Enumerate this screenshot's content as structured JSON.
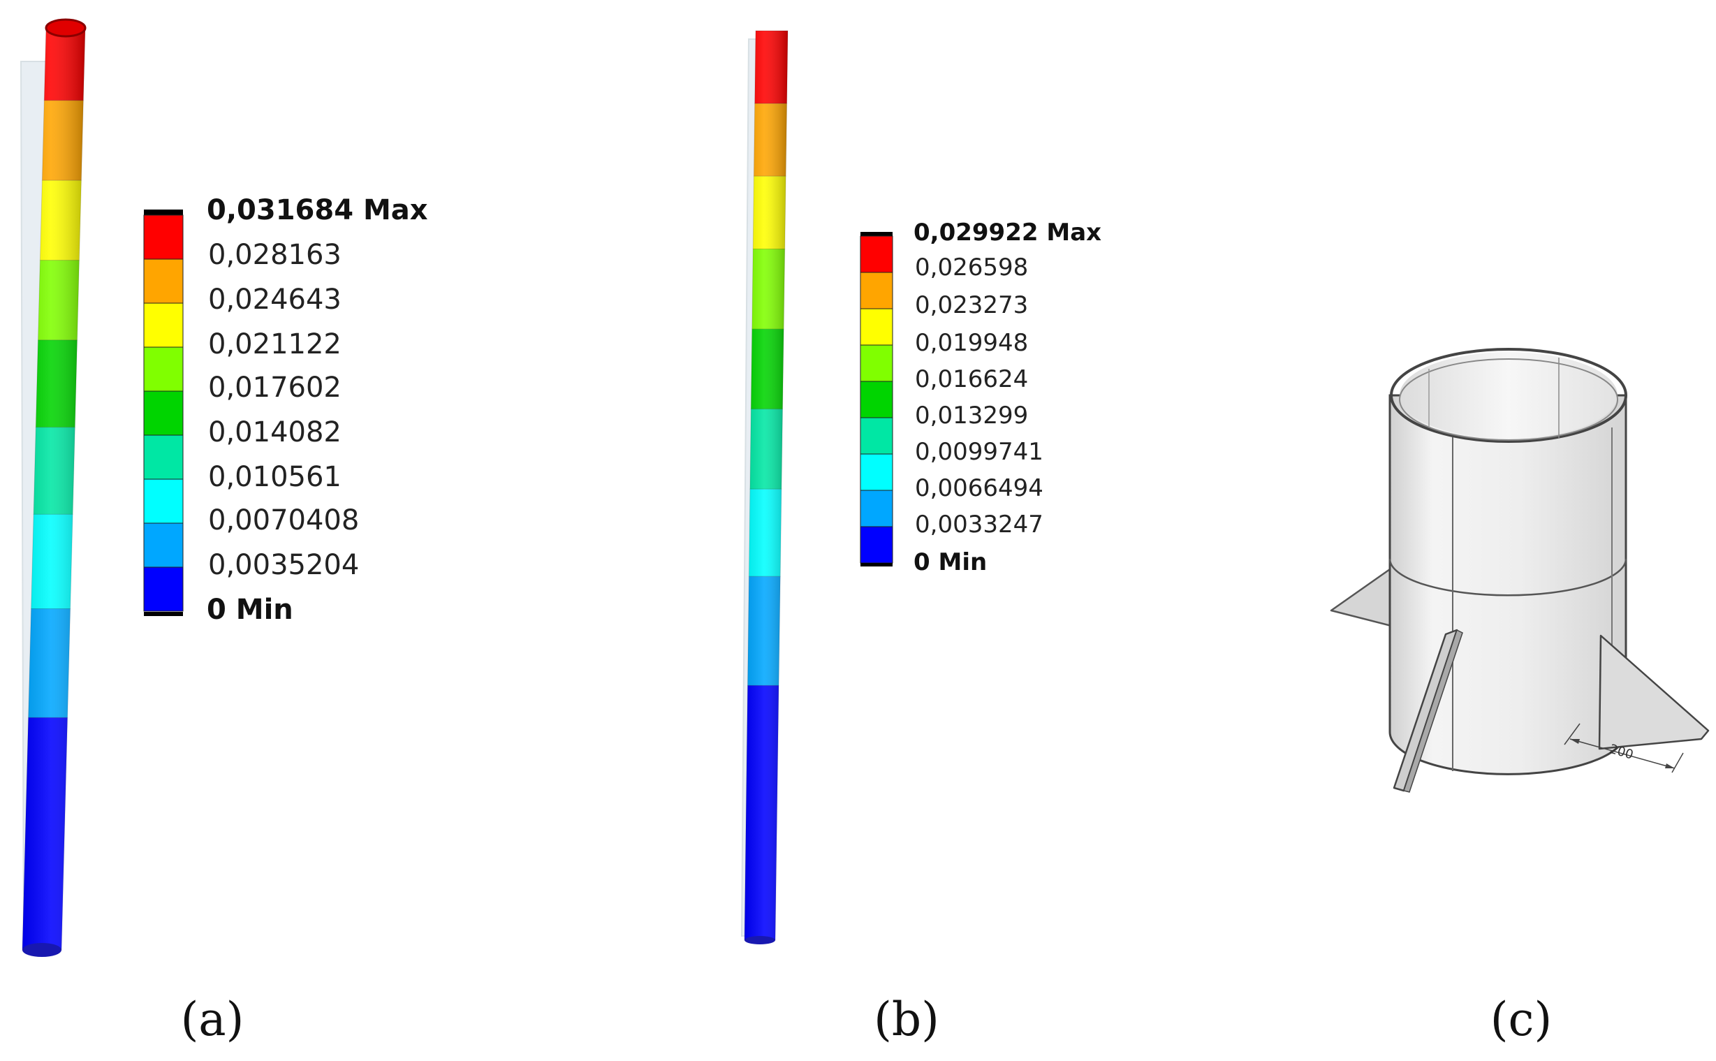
{
  "panels": {
    "a": {
      "caption": "(a)",
      "legend": {
        "labels": [
          "0,031684 Max",
          "0,028163",
          "0,024643",
          "0,021122",
          "0,017602",
          "0,014082",
          "0,010561",
          "0,0070408",
          "0,0035204",
          "0 Min"
        ],
        "colors": [
          "#ff0000",
          "#ffa500",
          "#ffff00",
          "#80ff00",
          "#00d400",
          "#00e7a4",
          "#00ffff",
          "#00a7ff",
          "#0000ff"
        ]
      }
    },
    "b": {
      "caption": "(b)",
      "legend": {
        "labels": [
          "0,029922 Max",
          "0,026598",
          "0,023273",
          "0,019948",
          "0,016624",
          "0,013299",
          "0,0099741",
          "0,0066494",
          "0,0033247",
          "0 Min"
        ],
        "colors": [
          "#ff0000",
          "#ffa500",
          "#ffff00",
          "#80ff00",
          "#00d400",
          "#00e7a4",
          "#00ffff",
          "#00a7ff",
          "#0000ff"
        ]
      }
    },
    "c": {
      "caption": "(c)",
      "dimension_label": "200"
    }
  }
}
